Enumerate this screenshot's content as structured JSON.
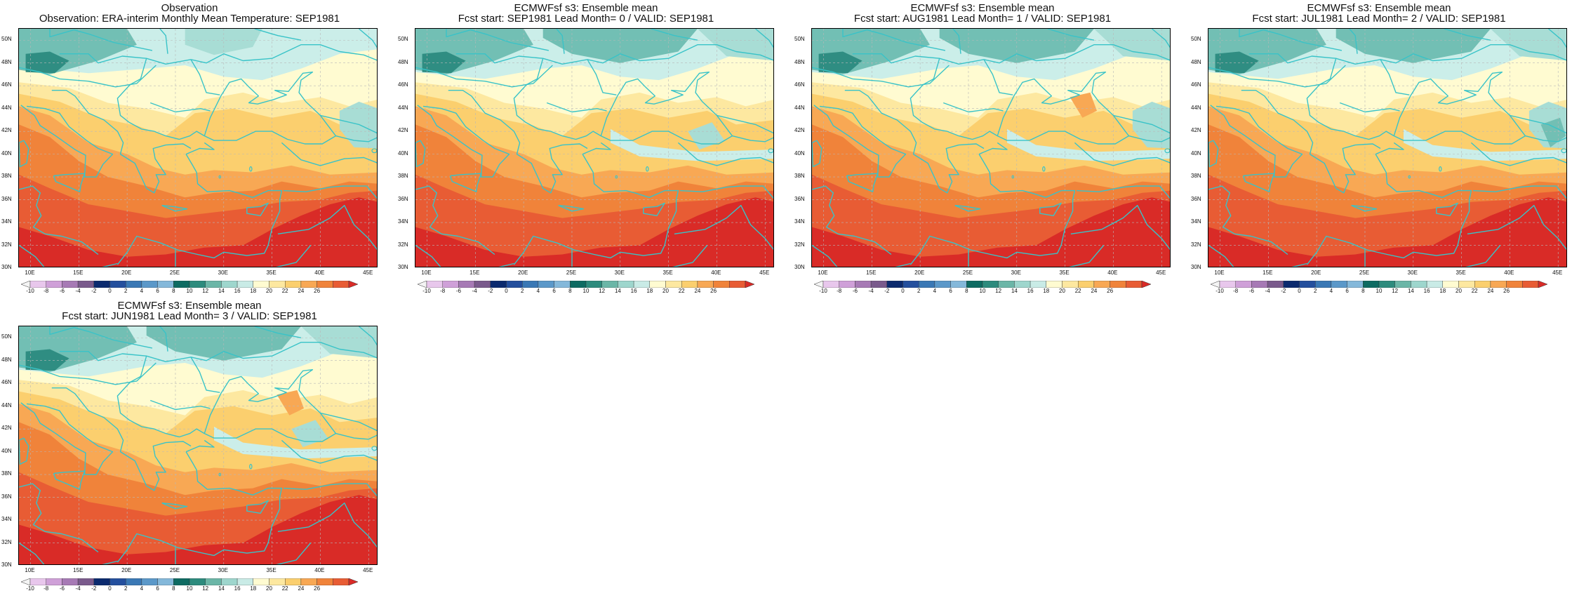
{
  "panels": [
    {
      "title1": "Observation",
      "title2": "Observation: ERA-interim Monthly Mean Temperature: SEP1981",
      "variant": 0
    },
    {
      "title1": "ECMWFsf s3: Ensemble mean",
      "title2": "Fcst start: SEP1981  Lead Month= 0 / VALID: SEP1981",
      "variant": 1
    },
    {
      "title1": "ECMWFsf s3: Ensemble mean",
      "title2": "Fcst start: AUG1981  Lead Month= 1 / VALID: SEP1981",
      "variant": 2
    },
    {
      "title1": "ECMWFsf s3: Ensemble mean",
      "title2": "Fcst start: JUL1981  Lead Month= 2 / VALID: SEP1981",
      "variant": 3
    },
    {
      "title1": "ECMWFsf s3: Ensemble mean",
      "title2": "Fcst start: JUN1981  Lead Month= 3 / VALID: SEP1981",
      "variant": 4
    }
  ],
  "lat_labels": [
    "50N",
    "48N",
    "46N",
    "44N",
    "42N",
    "40N",
    "38N",
    "36N",
    "34N",
    "32N",
    "30N"
  ],
  "lon_labels": [
    "10E",
    "15E",
    "20E",
    "25E",
    "30E",
    "35E",
    "40E",
    "45E"
  ],
  "colorbar": {
    "labels": [
      "-10",
      "-8",
      "-6",
      "-4",
      "-2",
      "0",
      "2",
      "4",
      "6",
      "8",
      "10",
      "12",
      "14",
      "16",
      "18",
      "20",
      "22",
      "24",
      "26"
    ],
    "colors": [
      "#f4f4f4",
      "#e8c7ec",
      "#cfa0d8",
      "#a77ab5",
      "#7a5a8c",
      "#0b2a6e",
      "#244f9d",
      "#3a78b5",
      "#5b98c9",
      "#84b8da",
      "#0e6b62",
      "#2d8b7d",
      "#6bb6a7",
      "#9ed6cd",
      "#c9ebe6",
      "#fffbd1",
      "#fde8a0",
      "#fbcf6e",
      "#f8a854",
      "#f0833a",
      "#e85c34",
      "#d92b27"
    ]
  },
  "map_colors": {
    "teal_dark": "#2f8d82",
    "teal": "#72bfb4",
    "teal_light": "#a8ddd5",
    "mint": "#cbeee9",
    "cream": "#fffbd1",
    "light_yellow": "#fde8a0",
    "yellow": "#fbcf6e",
    "light_orange": "#f8a854",
    "orange": "#f0833a",
    "red_orange": "#e85c34",
    "red": "#d92b27",
    "coast": "#39c3c8"
  }
}
